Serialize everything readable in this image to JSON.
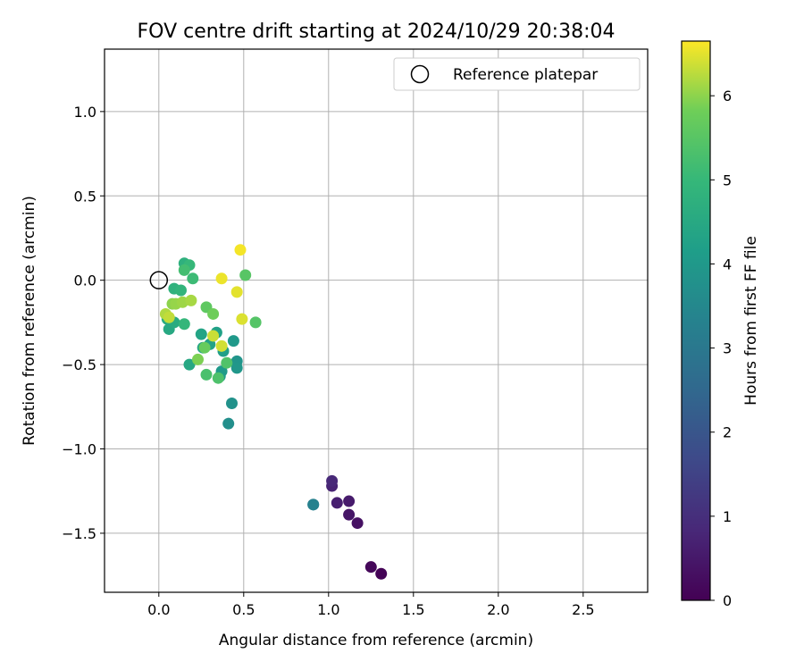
{
  "chart_data": {
    "type": "scatter",
    "title": "FOV centre drift starting at 2024/10/29 20:38:04",
    "xlabel": "Angular distance from reference (arcmin)",
    "ylabel": "Rotation from reference (arcmin)",
    "xlim": [
      -0.32,
      2.88
    ],
    "ylim": [
      -1.85,
      1.37
    ],
    "xticks": [
      0.0,
      0.5,
      1.0,
      1.5,
      2.0,
      2.5
    ],
    "xtick_labels": [
      "0.0",
      "0.5",
      "1.0",
      "1.5",
      "2.0",
      "2.5"
    ],
    "yticks": [
      1.0,
      0.5,
      0.0,
      -0.5,
      -1.0,
      -1.5
    ],
    "ytick_labels": [
      "1.0",
      "0.5",
      "0.0",
      "−0.5",
      "−1.0",
      "−1.5"
    ],
    "grid": true,
    "legend": {
      "placement": "top-right",
      "entries": [
        "Reference platepar"
      ]
    },
    "reference_point": {
      "x": 0.0,
      "y": 0.0,
      "label": "Reference platepar"
    },
    "colorbar": {
      "label": "Hours from first FF file",
      "colormap": "viridis",
      "range": [
        0,
        6.65
      ],
      "ticks": [
        0,
        1,
        2,
        3,
        4,
        5,
        6
      ],
      "tick_labels": [
        "0",
        "1",
        "2",
        "3",
        "4",
        "5",
        "6"
      ]
    },
    "points": [
      {
        "x": 1.31,
        "y": -1.74,
        "c": 0.05
      },
      {
        "x": 1.25,
        "y": -1.7,
        "c": 0.15
      },
      {
        "x": 1.17,
        "y": -1.44,
        "c": 0.35
      },
      {
        "x": 1.12,
        "y": -1.39,
        "c": 0.45
      },
      {
        "x": 1.12,
        "y": -1.31,
        "c": 0.55
      },
      {
        "x": 1.05,
        "y": -1.32,
        "c": 0.65
      },
      {
        "x": 1.02,
        "y": -1.22,
        "c": 0.75
      },
      {
        "x": 1.02,
        "y": -1.19,
        "c": 0.85
      },
      {
        "x": 0.91,
        "y": -1.33,
        "c": 3.0
      },
      {
        "x": 0.91,
        "y": -1.33,
        "c": 3.3
      },
      {
        "x": 0.41,
        "y": -0.85,
        "c": 3.7
      },
      {
        "x": 0.43,
        "y": -0.73,
        "c": 3.8
      },
      {
        "x": 0.46,
        "y": -0.48,
        "c": 3.9
      },
      {
        "x": 0.46,
        "y": -0.52,
        "c": 3.95
      },
      {
        "x": 0.44,
        "y": -0.36,
        "c": 4.0
      },
      {
        "x": 0.37,
        "y": -0.54,
        "c": 4.05
      },
      {
        "x": 0.36,
        "y": -0.57,
        "c": 4.1
      },
      {
        "x": 0.38,
        "y": -0.42,
        "c": 4.2
      },
      {
        "x": 0.34,
        "y": -0.31,
        "c": 4.25
      },
      {
        "x": 0.3,
        "y": -0.38,
        "c": 4.3
      },
      {
        "x": 0.25,
        "y": -0.32,
        "c": 4.35
      },
      {
        "x": 0.26,
        "y": -0.4,
        "c": 4.4
      },
      {
        "x": 0.18,
        "y": -0.5,
        "c": 4.45
      },
      {
        "x": 0.06,
        "y": -0.29,
        "c": 4.5
      },
      {
        "x": 0.05,
        "y": -0.23,
        "c": 4.55
      },
      {
        "x": 0.09,
        "y": -0.25,
        "c": 4.6
      },
      {
        "x": 0.16,
        "y": 0.09,
        "c": 4.7
      },
      {
        "x": 0.15,
        "y": 0.1,
        "c": 4.75
      },
      {
        "x": 0.09,
        "y": -0.05,
        "c": 4.8
      },
      {
        "x": 0.13,
        "y": -0.06,
        "c": 4.9
      },
      {
        "x": 0.15,
        "y": -0.26,
        "c": 4.95
      },
      {
        "x": 0.18,
        "y": 0.09,
        "c": 5.0
      },
      {
        "x": 0.2,
        "y": 0.01,
        "c": 5.1
      },
      {
        "x": 0.15,
        "y": 0.06,
        "c": 5.2
      },
      {
        "x": 0.28,
        "y": -0.56,
        "c": 5.3
      },
      {
        "x": 0.35,
        "y": -0.58,
        "c": 5.35
      },
      {
        "x": 0.4,
        "y": -0.49,
        "c": 5.4
      },
      {
        "x": 0.57,
        "y": -0.25,
        "c": 5.45
      },
      {
        "x": 0.51,
        "y": 0.03,
        "c": 5.5
      },
      {
        "x": 0.28,
        "y": -0.16,
        "c": 5.6
      },
      {
        "x": 0.27,
        "y": -0.4,
        "c": 5.7
      },
      {
        "x": 0.32,
        "y": -0.2,
        "c": 5.8
      },
      {
        "x": 0.23,
        "y": -0.47,
        "c": 5.9
      },
      {
        "x": 0.08,
        "y": -0.14,
        "c": 6.0
      },
      {
        "x": 0.1,
        "y": -0.14,
        "c": 6.05
      },
      {
        "x": 0.14,
        "y": -0.13,
        "c": 6.1
      },
      {
        "x": 0.19,
        "y": -0.12,
        "c": 6.15
      },
      {
        "x": 0.04,
        "y": -0.2,
        "c": 6.2
      },
      {
        "x": 0.06,
        "y": -0.22,
        "c": 6.3
      },
      {
        "x": 0.32,
        "y": -0.33,
        "c": 6.35
      },
      {
        "x": 0.37,
        "y": -0.39,
        "c": 6.4
      },
      {
        "x": 0.49,
        "y": -0.23,
        "c": 6.45
      },
      {
        "x": 0.46,
        "y": -0.07,
        "c": 6.5
      },
      {
        "x": 0.37,
        "y": 0.01,
        "c": 6.55
      },
      {
        "x": 0.48,
        "y": 0.18,
        "c": 6.6
      }
    ]
  }
}
